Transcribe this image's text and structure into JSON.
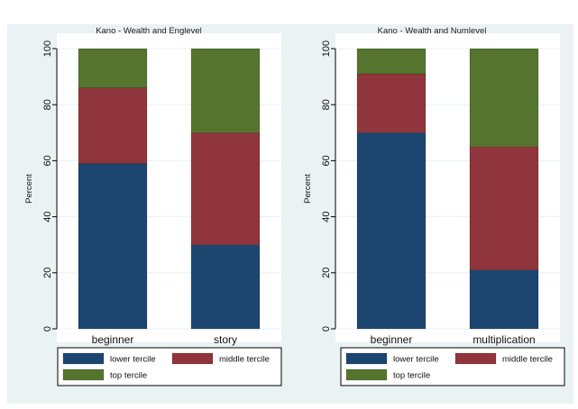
{
  "colors": {
    "lower": "#1c4670",
    "middle": "#90353b",
    "top": "#55752f",
    "outer_bg": "#eaf2f3",
    "plot_bg": "#ffffff",
    "grid": "#eaf2f3"
  },
  "legend_labels": [
    "lower tercile",
    "middle tercile",
    "top tercile"
  ],
  "chart_data": [
    {
      "type": "bar",
      "stacked": true,
      "title": "Kano - Wealth and Englevel",
      "ylabel": "Percent",
      "xlabel": "",
      "ylim": [
        0,
        100
      ],
      "yticks": [
        0,
        20,
        40,
        60,
        80,
        100
      ],
      "categories": [
        "beginner",
        "story"
      ],
      "series": [
        {
          "name": "lower tercile",
          "values": [
            59,
            30
          ]
        },
        {
          "name": "middle tercile",
          "values": [
            27,
            40
          ]
        },
        {
          "name": "top tercile",
          "values": [
            14,
            30
          ]
        }
      ],
      "grid": true,
      "legend": "bottom"
    },
    {
      "type": "bar",
      "stacked": true,
      "title": "Kano - Wealth and Numlevel",
      "ylabel": "Percent",
      "xlabel": "",
      "ylim": [
        0,
        100
      ],
      "yticks": [
        0,
        20,
        40,
        60,
        80,
        100
      ],
      "categories": [
        "beginner",
        "multiplication"
      ],
      "series": [
        {
          "name": "lower tercile",
          "values": [
            70,
            21
          ]
        },
        {
          "name": "middle tercile",
          "values": [
            21,
            44
          ]
        },
        {
          "name": "top tercile",
          "values": [
            9,
            35
          ]
        }
      ],
      "grid": true,
      "legend": "bottom"
    }
  ]
}
